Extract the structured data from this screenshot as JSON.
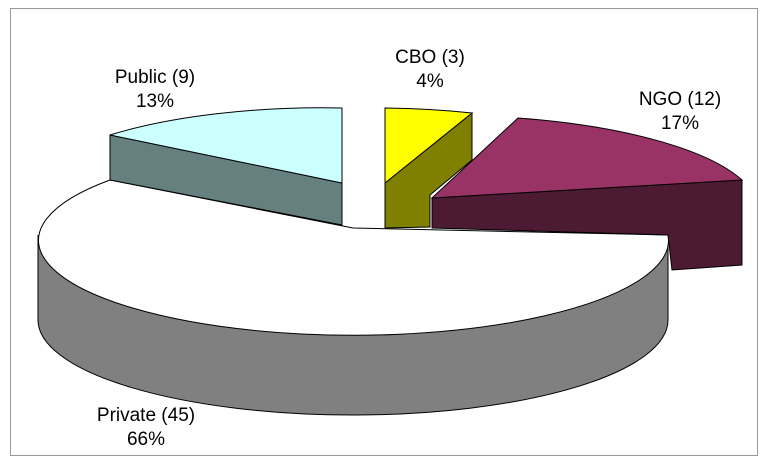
{
  "chart_data": {
    "type": "pie",
    "style": "3d-exploded",
    "slices": [
      {
        "label": "CBO (3)",
        "percent_label": "4%",
        "count": 3,
        "percent": 4,
        "color": "#ffff00",
        "side_color": "#808000"
      },
      {
        "label": "NGO (12)",
        "percent_label": "17%",
        "count": 12,
        "percent": 17,
        "color": "#993366",
        "side_color": "#4d1a33"
      },
      {
        "label": "Private (45)",
        "percent_label": "66%",
        "count": 45,
        "percent": 66,
        "color": "#ffffff",
        "side_color": "#808080"
      },
      {
        "label": "Public (9)",
        "percent_label": "13%",
        "count": 9,
        "percent": 13,
        "color": "#ccffff",
        "side_color": "#668080"
      }
    ],
    "title": "",
    "legend": "none"
  }
}
